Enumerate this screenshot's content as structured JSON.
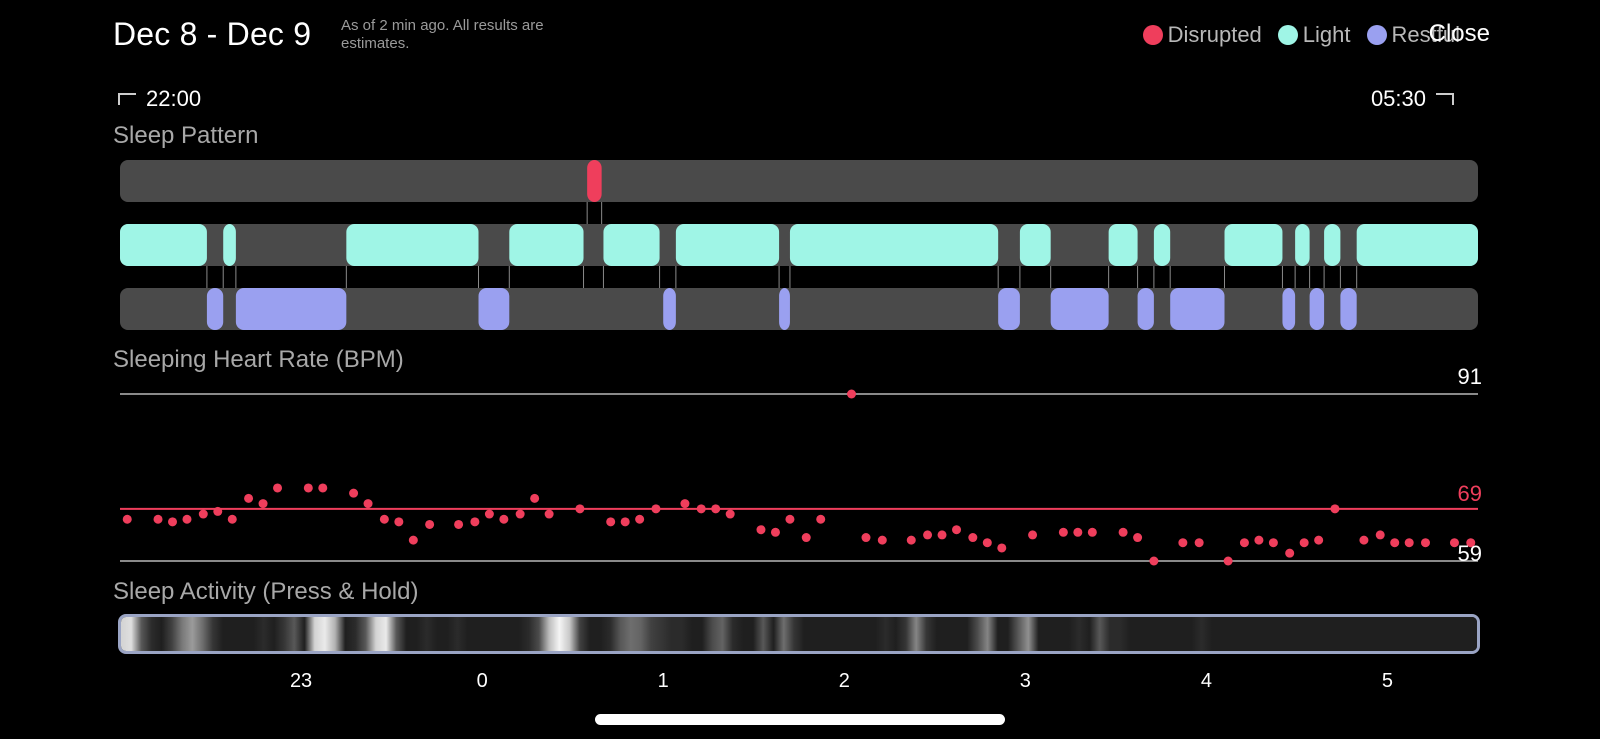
{
  "header": {
    "date_range": "Dec 8 - Dec 9",
    "as_of": "As of 2 min ago. All results are estimates.",
    "close_label": "Close"
  },
  "legend": [
    {
      "label": "Disrupted",
      "color": "#ef3e5c"
    },
    {
      "label": "Light",
      "color": "#9ff5e6"
    },
    {
      "label": "Restful",
      "color": "#9aa0f0"
    }
  ],
  "time_range": {
    "start": "22:00",
    "end": "05:30"
  },
  "sleep_pattern": {
    "title": "Sleep Pattern",
    "track_color": "#4a4a4a",
    "disrupted": [
      [
        2.58,
        2.66
      ]
    ],
    "light": [
      [
        0,
        0.48
      ],
      [
        0.57,
        0.64
      ],
      [
        1.25,
        1.98
      ],
      [
        2.15,
        2.56
      ],
      [
        2.67,
        2.98
      ],
      [
        3.07,
        3.64
      ],
      [
        3.7,
        4.85
      ],
      [
        4.97,
        5.14
      ],
      [
        5.46,
        5.62
      ],
      [
        5.71,
        5.8
      ],
      [
        6.1,
        6.42
      ],
      [
        6.49,
        6.57
      ],
      [
        6.65,
        6.74
      ],
      [
        6.83,
        7.5
      ]
    ],
    "restful": [
      [
        0.48,
        0.57
      ],
      [
        0.64,
        1.25
      ],
      [
        1.98,
        2.15
      ],
      [
        3.0,
        3.07
      ],
      [
        3.64,
        3.7
      ],
      [
        4.85,
        4.97
      ],
      [
        5.14,
        5.46
      ],
      [
        5.62,
        5.71
      ],
      [
        5.8,
        6.1
      ],
      [
        6.42,
        6.49
      ],
      [
        6.57,
        6.65
      ],
      [
        6.74,
        6.83
      ]
    ]
  },
  "heart_rate": {
    "title": "Sleeping Heart Rate (BPM)",
    "max": 91,
    "avg": 69,
    "min": 59,
    "accent": "#ef3e5c",
    "points": [
      [
        0.04,
        67
      ],
      [
        0.21,
        67
      ],
      [
        0.29,
        66.5
      ],
      [
        0.37,
        67
      ],
      [
        0.46,
        68
      ],
      [
        0.54,
        68.5
      ],
      [
        0.62,
        67
      ],
      [
        0.71,
        71
      ],
      [
        0.79,
        70
      ],
      [
        0.87,
        73
      ],
      [
        1.04,
        73
      ],
      [
        1.12,
        73
      ],
      [
        1.29,
        72
      ],
      [
        1.37,
        70
      ],
      [
        1.46,
        67
      ],
      [
        1.54,
        66.5
      ],
      [
        1.62,
        63
      ],
      [
        1.71,
        66
      ],
      [
        1.87,
        66
      ],
      [
        1.96,
        66.5
      ],
      [
        2.04,
        68
      ],
      [
        2.12,
        67
      ],
      [
        2.21,
        68
      ],
      [
        2.29,
        71
      ],
      [
        2.37,
        68
      ],
      [
        2.54,
        69
      ],
      [
        2.71,
        66.5
      ],
      [
        2.79,
        66.5
      ],
      [
        2.87,
        67
      ],
      [
        2.96,
        69
      ],
      [
        3.12,
        70
      ],
      [
        3.21,
        69
      ],
      [
        3.29,
        69
      ],
      [
        3.37,
        68
      ],
      [
        3.54,
        65
      ],
      [
        3.62,
        64.5
      ],
      [
        3.7,
        67
      ],
      [
        3.79,
        63.5
      ],
      [
        3.87,
        67
      ],
      [
        4.04,
        91
      ],
      [
        4.12,
        63.5
      ],
      [
        4.21,
        63
      ],
      [
        4.37,
        63
      ],
      [
        4.46,
        64
      ],
      [
        4.54,
        64
      ],
      [
        4.62,
        65
      ],
      [
        4.71,
        63.5
      ],
      [
        4.79,
        62.5
      ],
      [
        4.87,
        61.5
      ],
      [
        5.04,
        64
      ],
      [
        5.21,
        64.5
      ],
      [
        5.29,
        64.5
      ],
      [
        5.37,
        64.5
      ],
      [
        5.54,
        64.5
      ],
      [
        5.62,
        63.5
      ],
      [
        5.71,
        59
      ],
      [
        5.87,
        62.5
      ],
      [
        5.96,
        62.5
      ],
      [
        6.12,
        59
      ],
      [
        6.21,
        62.5
      ],
      [
        6.29,
        63
      ],
      [
        6.37,
        62.5
      ],
      [
        6.46,
        60.5
      ],
      [
        6.54,
        62.5
      ],
      [
        6.62,
        63
      ],
      [
        6.71,
        69
      ],
      [
        6.87,
        63
      ],
      [
        6.96,
        64
      ],
      [
        7.04,
        62.5
      ],
      [
        7.12,
        62.5
      ],
      [
        7.21,
        62.5
      ],
      [
        7.37,
        62.5
      ],
      [
        7.46,
        62.5
      ]
    ]
  },
  "activity": {
    "title": "Sleep Activity (Press & Hold)",
    "intensity": [
      0.85,
      0.9,
      0.3,
      0.1,
      0.05,
      0.2,
      0.45,
      0.6,
      0.4,
      0.15,
      0.05,
      0.05,
      0.05,
      0.05,
      0.1,
      0.05,
      0.15,
      0.3,
      0.05,
      0.85,
      0.95,
      0.7,
      0.05,
      0.1,
      0.3,
      0.85,
      0.95,
      0.3,
      0.05,
      0.05,
      0.1,
      0.05,
      0.05,
      0.1,
      0.05,
      0.05,
      0.05,
      0.05,
      0.05,
      0.05,
      0.1,
      0.25,
      0.75,
      1.0,
      0.8,
      0.2,
      0.05,
      0.05,
      0.1,
      0.3,
      0.4,
      0.35,
      0.2,
      0.15,
      0.1,
      0.1,
      0.05,
      0.05,
      0.25,
      0.35,
      0.1,
      0.05,
      0.05,
      0.3,
      0.05,
      0.4,
      0.15,
      0.05,
      0.05,
      0.05,
      0.05,
      0.05,
      0.05,
      0.05,
      0.05,
      0.1,
      0.05,
      0.15,
      0.5,
      0.15,
      0.05,
      0.05,
      0.05,
      0.05,
      0.25,
      0.5,
      0.05,
      0.05,
      0.3,
      0.55,
      0.05,
      0.05,
      0.05,
      0.05,
      0.1,
      0.05,
      0.3,
      0.1,
      0.1,
      0.05,
      0.05,
      0.05,
      0.05,
      0.05,
      0.05,
      0.05,
      0.1,
      0.05,
      0.05,
      0.05,
      0.05,
      0.05,
      0.05,
      0.05,
      0.05,
      0.05,
      0.05,
      0.05,
      0.05,
      0.05,
      0.05,
      0.05,
      0.05,
      0.05,
      0.05,
      0.05,
      0.05,
      0.05,
      0.05,
      0.05,
      0.05,
      0.05,
      0.05,
      0.05
    ]
  },
  "x_axis": {
    "ticks": [
      "23",
      "0",
      "1",
      "2",
      "3",
      "4",
      "5"
    ],
    "tick_hours": [
      1,
      2,
      3,
      4,
      5,
      6,
      7
    ]
  }
}
